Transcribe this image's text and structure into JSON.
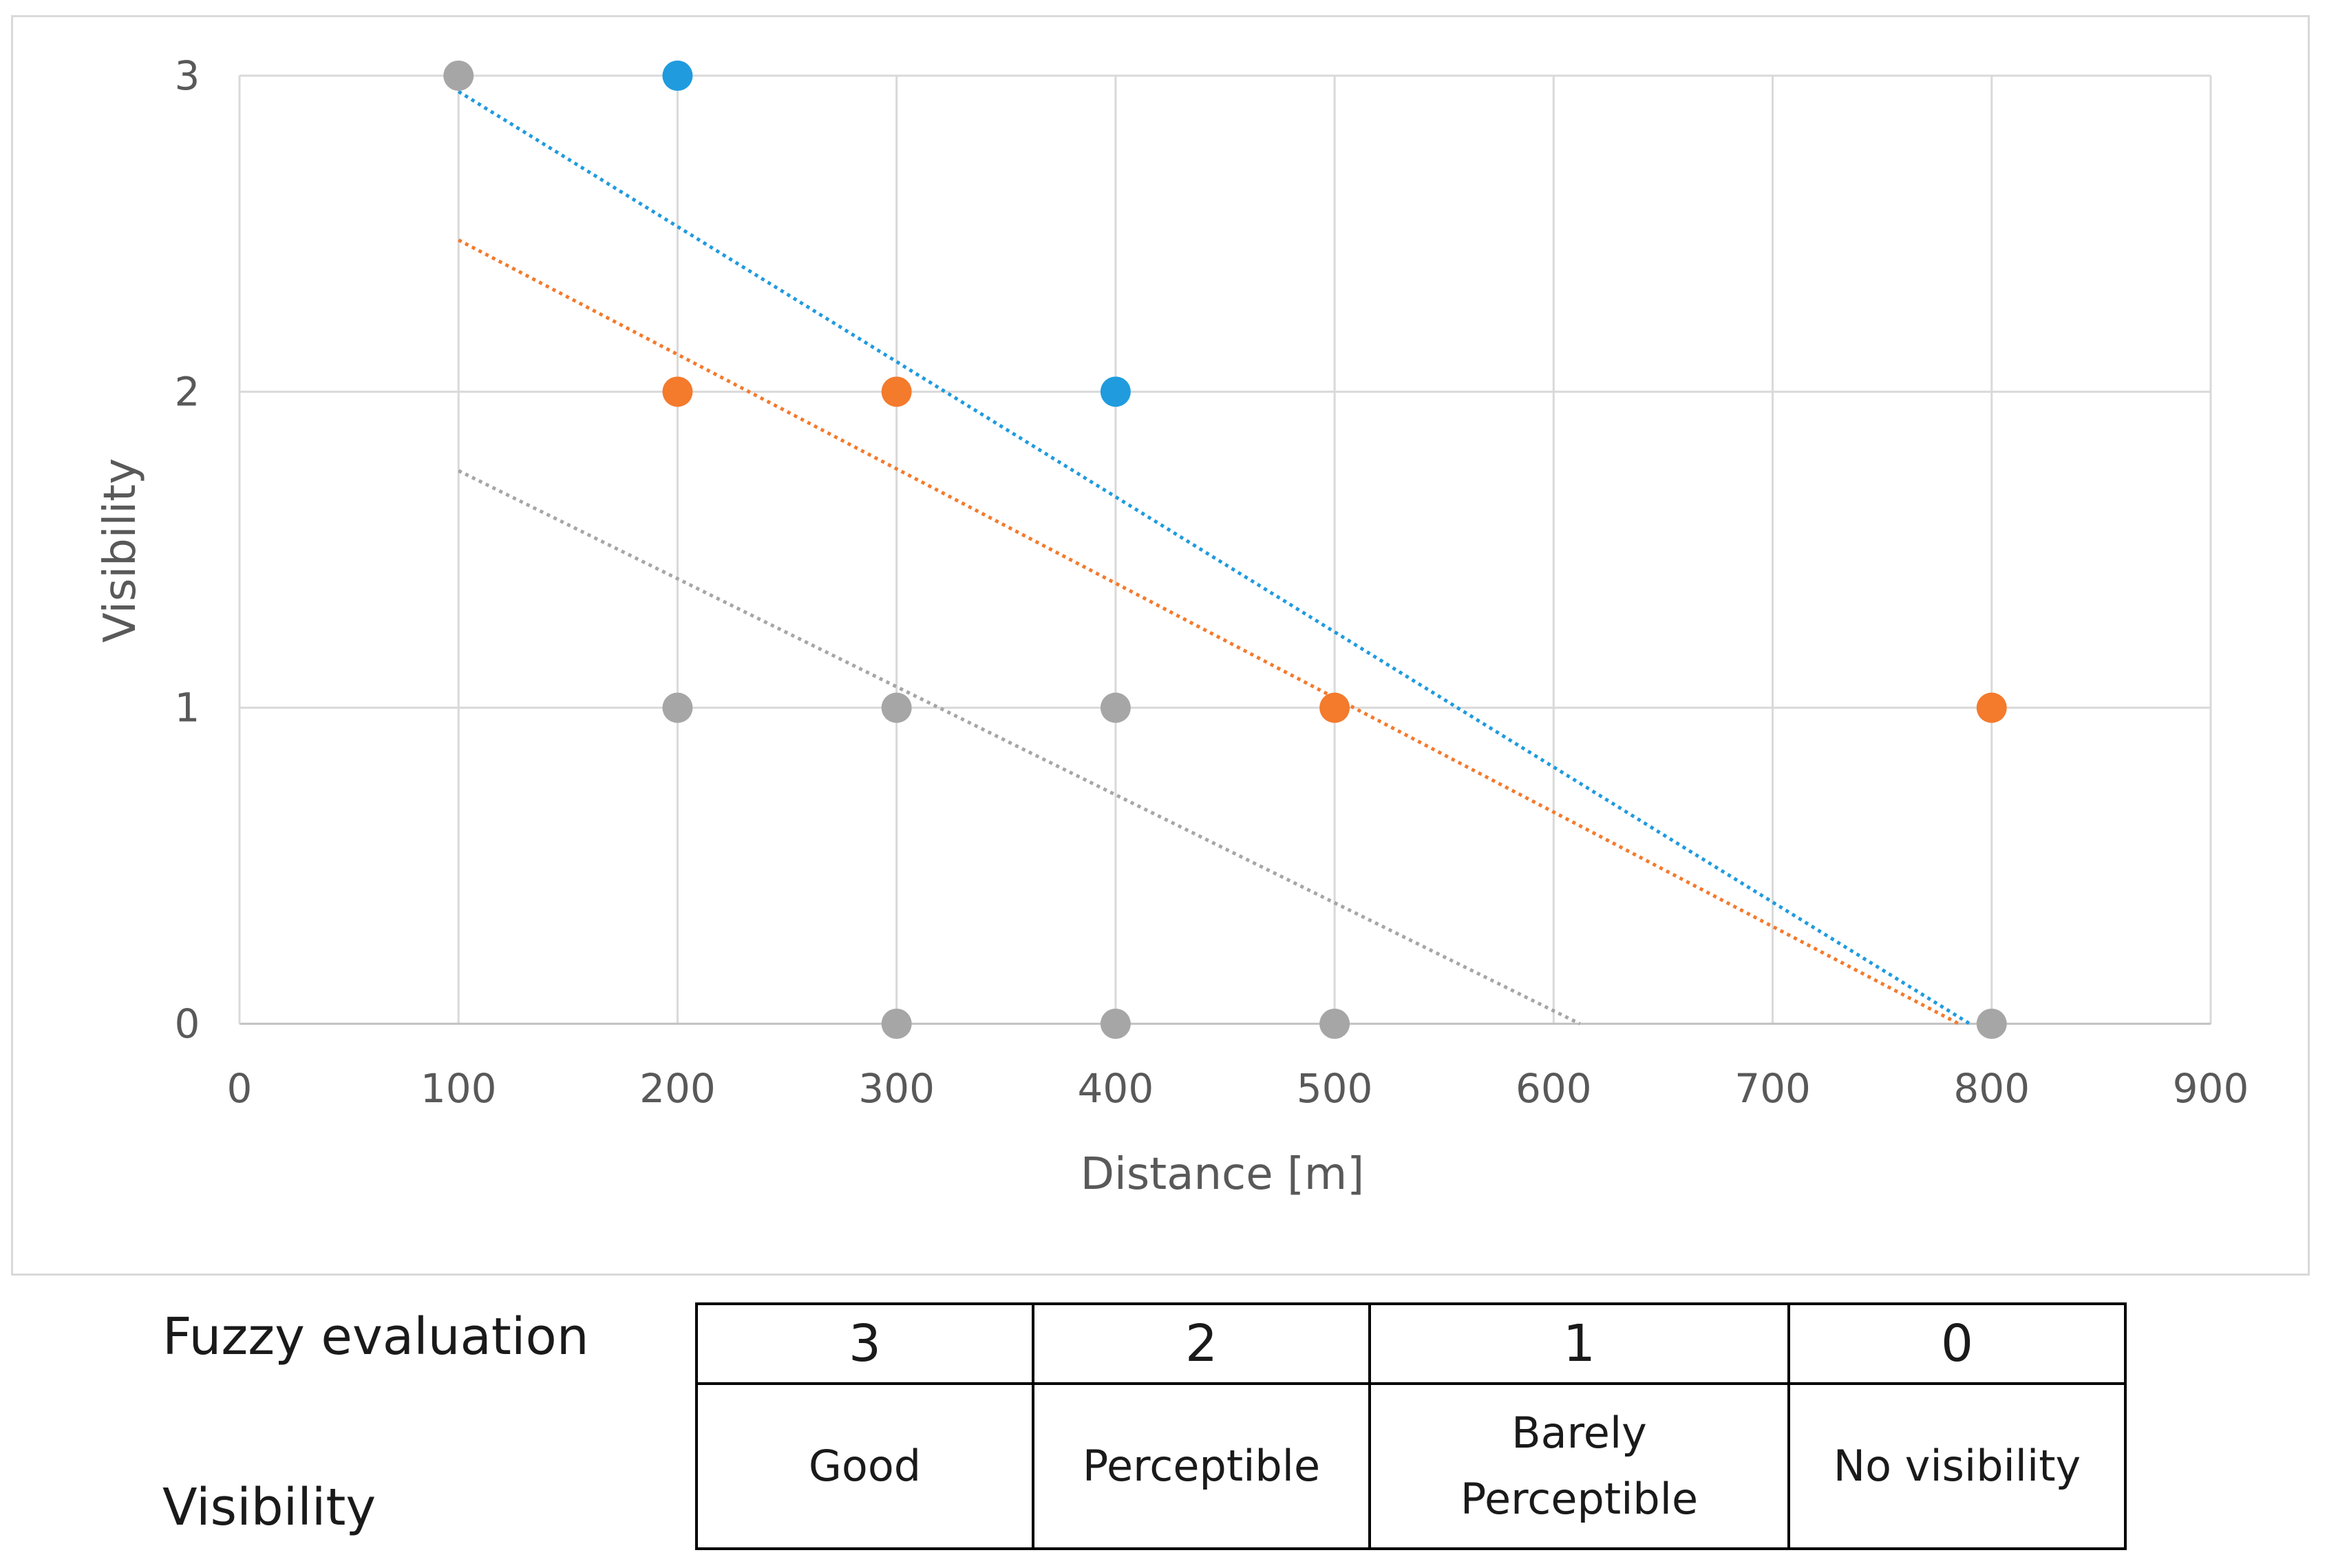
{
  "chart_data": {
    "type": "scatter",
    "xlabel": "Distance  [m]",
    "ylabel": "Visibility",
    "xlim": [
      0,
      900
    ],
    "ylim": [
      0,
      3
    ],
    "xticks": [
      "0",
      "100",
      "200",
      "300",
      "400",
      "500",
      "600",
      "700",
      "800",
      "900"
    ],
    "yticks": [
      "0",
      "1",
      "2",
      "3"
    ],
    "grid": true,
    "legend": "none",
    "series": [
      {
        "color": "#1f9bde",
        "points": [
          [
            200,
            3
          ],
          [
            400,
            2
          ]
        ],
        "trendline": {
          "style": "dotted",
          "from": [
            100,
            2.95
          ],
          "to": [
            790,
            0
          ]
        }
      },
      {
        "color": "#f47a2c",
        "points": [
          [
            200,
            2
          ],
          [
            300,
            2
          ],
          [
            500,
            1
          ],
          [
            800,
            1
          ]
        ],
        "trendline": {
          "style": "dotted",
          "from": [
            100,
            2.48
          ],
          "to": [
            785,
            0
          ]
        }
      },
      {
        "color": "#a6a6a6",
        "points": [
          [
            100,
            3
          ],
          [
            200,
            1
          ],
          [
            300,
            1
          ],
          [
            400,
            1
          ],
          [
            300,
            0
          ],
          [
            400,
            0
          ],
          [
            500,
            0
          ],
          [
            800,
            0
          ]
        ],
        "trendline": {
          "style": "dotted",
          "from": [
            100,
            1.75
          ],
          "to": [
            612,
            0
          ]
        }
      }
    ]
  },
  "legend_table": {
    "row1_label": "Fuzzy evaluation",
    "row2_label": "Visibility",
    "scores": [
      "3",
      "2",
      "1",
      "0"
    ],
    "descriptions": [
      "Good",
      "Perceptible",
      "Barely Perceptible",
      "No visibility"
    ]
  }
}
